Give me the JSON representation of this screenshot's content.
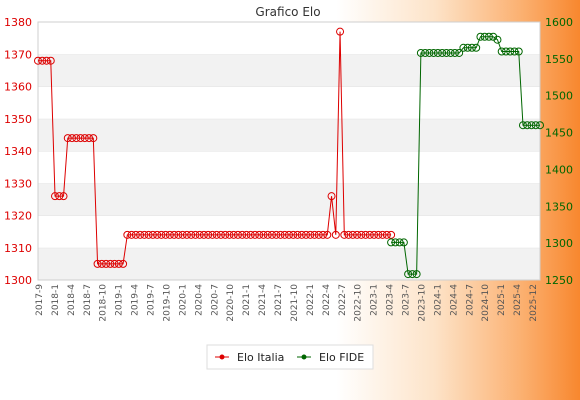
{
  "chart_data": {
    "type": "line",
    "title": "Grafico Elo",
    "y_left": {
      "lim": [
        1300,
        1380
      ],
      "ticks": [
        1300,
        1310,
        1320,
        1330,
        1340,
        1350,
        1360,
        1370,
        1380
      ]
    },
    "y_right": {
      "lim": [
        1250,
        1600
      ],
      "ticks": [
        1250,
        1300,
        1350,
        1400,
        1450,
        1500,
        1550,
        1600
      ]
    },
    "grid": "horizontal bands",
    "legend_position": "bottom",
    "x_labels": [
      "2017-9",
      "2018-1",
      "2018-4",
      "2018-7",
      "2018-10",
      "2019-1",
      "2019-4",
      "2019-7",
      "2019-10",
      "2020-1",
      "2020-4",
      "2020-7",
      "2020-10",
      "2021-1",
      "2021-4",
      "2021-7",
      "2021-10",
      "2022-1",
      "2022-4",
      "2022-7",
      "2022-10",
      "2023-1",
      "2023-4",
      "2023-7",
      "2023-10",
      "2024-1",
      "2024-4",
      "2024-7",
      "2024-10",
      "2025-1",
      "2025-4",
      "2025-12"
    ],
    "series": [
      {
        "name": "Elo Italia",
        "color": "#dd0000",
        "axis": "left",
        "points": [
          [
            0,
            1368
          ],
          [
            1,
            1368
          ],
          [
            2,
            1368
          ],
          [
            3,
            1368
          ],
          [
            4,
            1326
          ],
          [
            5,
            1326
          ],
          [
            6,
            1326
          ],
          [
            7,
            1344
          ],
          [
            8,
            1344
          ],
          [
            9,
            1344
          ],
          [
            10,
            1344
          ],
          [
            11,
            1344
          ],
          [
            12,
            1344
          ],
          [
            13,
            1344
          ],
          [
            14,
            1305
          ],
          [
            15,
            1305
          ],
          [
            16,
            1305
          ],
          [
            17,
            1305
          ],
          [
            18,
            1305
          ],
          [
            19,
            1305
          ],
          [
            20,
            1305
          ],
          [
            21,
            1314
          ],
          [
            22,
            1314
          ],
          [
            23,
            1314
          ],
          [
            24,
            1314
          ],
          [
            25,
            1314
          ],
          [
            26,
            1314
          ],
          [
            27,
            1314
          ],
          [
            28,
            1314
          ],
          [
            29,
            1314
          ],
          [
            30,
            1314
          ],
          [
            31,
            1314
          ],
          [
            32,
            1314
          ],
          [
            33,
            1314
          ],
          [
            34,
            1314
          ],
          [
            35,
            1314
          ],
          [
            36,
            1314
          ],
          [
            37,
            1314
          ],
          [
            38,
            1314
          ],
          [
            39,
            1314
          ],
          [
            40,
            1314
          ],
          [
            41,
            1314
          ],
          [
            42,
            1314
          ],
          [
            43,
            1314
          ],
          [
            44,
            1314
          ],
          [
            45,
            1314
          ],
          [
            46,
            1314
          ],
          [
            47,
            1314
          ],
          [
            48,
            1314
          ],
          [
            49,
            1314
          ],
          [
            50,
            1314
          ],
          [
            51,
            1314
          ],
          [
            52,
            1314
          ],
          [
            53,
            1314
          ],
          [
            54,
            1314
          ],
          [
            55,
            1314
          ],
          [
            56,
            1314
          ],
          [
            57,
            1314
          ],
          [
            58,
            1314
          ],
          [
            59,
            1314
          ],
          [
            60,
            1314
          ],
          [
            61,
            1314
          ],
          [
            62,
            1314
          ],
          [
            63,
            1314
          ],
          [
            64,
            1314
          ],
          [
            65,
            1314
          ],
          [
            66,
            1314
          ],
          [
            67,
            1314
          ],
          [
            68,
            1314
          ],
          [
            69,
            1326
          ],
          [
            70,
            1314
          ],
          [
            71,
            1377
          ],
          [
            72,
            1314
          ],
          [
            73,
            1314
          ],
          [
            74,
            1314
          ],
          [
            75,
            1314
          ],
          [
            76,
            1314
          ],
          [
            77,
            1314
          ],
          [
            78,
            1314
          ],
          [
            79,
            1314
          ],
          [
            80,
            1314
          ],
          [
            81,
            1314
          ],
          [
            82,
            1314
          ],
          [
            83,
            1314
          ]
        ]
      },
      {
        "name": "Elo FIDE",
        "color": "#006600",
        "axis": "right",
        "points": [
          [
            83,
            1301
          ],
          [
            84,
            1301
          ],
          [
            85,
            1301
          ],
          [
            86,
            1301
          ],
          [
            87,
            1258
          ],
          [
            88,
            1258
          ],
          [
            89,
            1258
          ],
          [
            90,
            1558
          ],
          [
            91,
            1558
          ],
          [
            92,
            1558
          ],
          [
            93,
            1558
          ],
          [
            94,
            1558
          ],
          [
            95,
            1558
          ],
          [
            96,
            1558
          ],
          [
            97,
            1558
          ],
          [
            98,
            1558
          ],
          [
            99,
            1558
          ],
          [
            100,
            1565
          ],
          [
            101,
            1565
          ],
          [
            102,
            1565
          ],
          [
            103,
            1565
          ],
          [
            104,
            1580
          ],
          [
            105,
            1580
          ],
          [
            106,
            1580
          ],
          [
            107,
            1580
          ],
          [
            108,
            1576
          ],
          [
            109,
            1560
          ],
          [
            110,
            1560
          ],
          [
            111,
            1560
          ],
          [
            112,
            1560
          ],
          [
            113,
            1560
          ],
          [
            114,
            1460
          ],
          [
            115,
            1460
          ],
          [
            116,
            1460
          ],
          [
            117,
            1460
          ],
          [
            118,
            1460
          ]
        ]
      }
    ],
    "x_index_max": 118
  }
}
